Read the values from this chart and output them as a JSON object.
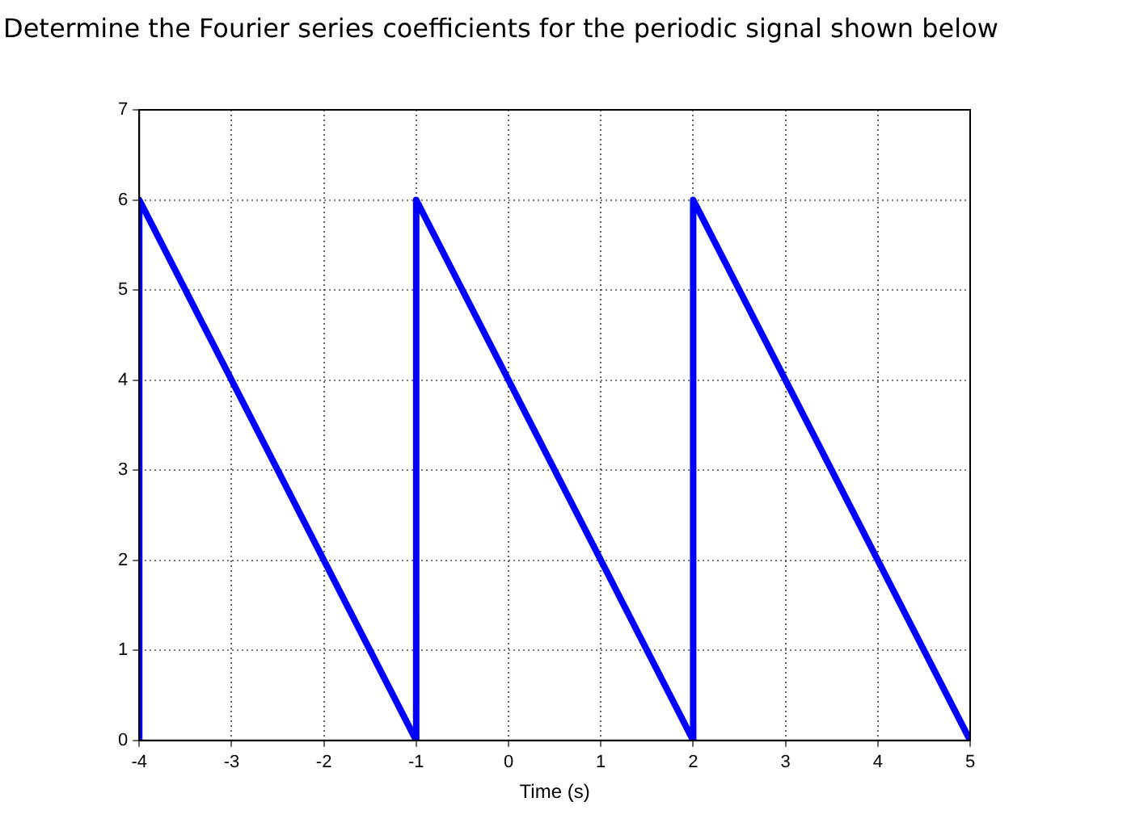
{
  "chart_data": {
    "type": "line",
    "title": "Determine the Fourier series coefficients for the periodic signal shown below",
    "xlabel": "Time (s)",
    "x": [
      -4,
      -4,
      -1,
      -1,
      2,
      2,
      5
    ],
    "series": [
      {
        "color": "#0000ff",
        "values": [
          0,
          6,
          0,
          6,
          0,
          6,
          0
        ]
      }
    ],
    "xlim": [
      -4,
      5
    ],
    "xticks": [
      -4,
      -3,
      -2,
      -1,
      0,
      1,
      2,
      3,
      4,
      5
    ],
    "ylim": [
      0,
      7
    ],
    "yticks": [
      0,
      1,
      2,
      3,
      4,
      5,
      6,
      7
    ],
    "grid": true,
    "legend": false
  }
}
